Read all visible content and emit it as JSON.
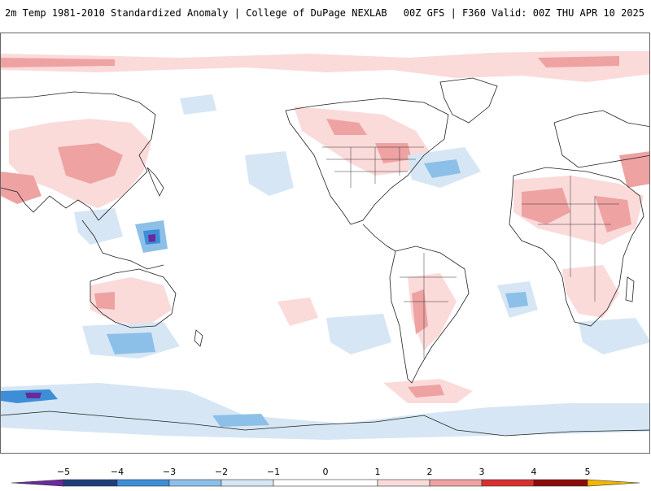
{
  "header": {
    "left_title": "2m Temp 1981-2010 Standardized Anomaly | College of DuPage NEXLAB",
    "right_title": "00Z GFS | F360 Valid: 00Z THU APR 10 2025"
  },
  "legend": {
    "tick_labels": [
      "−5",
      "−4",
      "−3",
      "−2",
      "−1",
      "0",
      "1",
      "2",
      "3",
      "4",
      "5"
    ],
    "colors": {
      "lt_minus5": "#6a2a9a",
      "minus5_to_minus4": "#1f3f7a",
      "minus4_to_minus3": "#3d8ed6",
      "minus3_to_minus2": "#8dc0e8",
      "minus2_to_minus1": "#d6e6f4",
      "minus1_to_1": "#ffffff",
      "1_to_2": "#fbdada",
      "2_to_3": "#eea2a2",
      "3_to_4": "#d63030",
      "4_to_5": "#8c0a0a",
      "gt_5": "#f2b600"
    }
  },
  "map": {
    "projection": "global cylindrical",
    "continent_outline_color": "#222222",
    "land_fill": "none"
  }
}
